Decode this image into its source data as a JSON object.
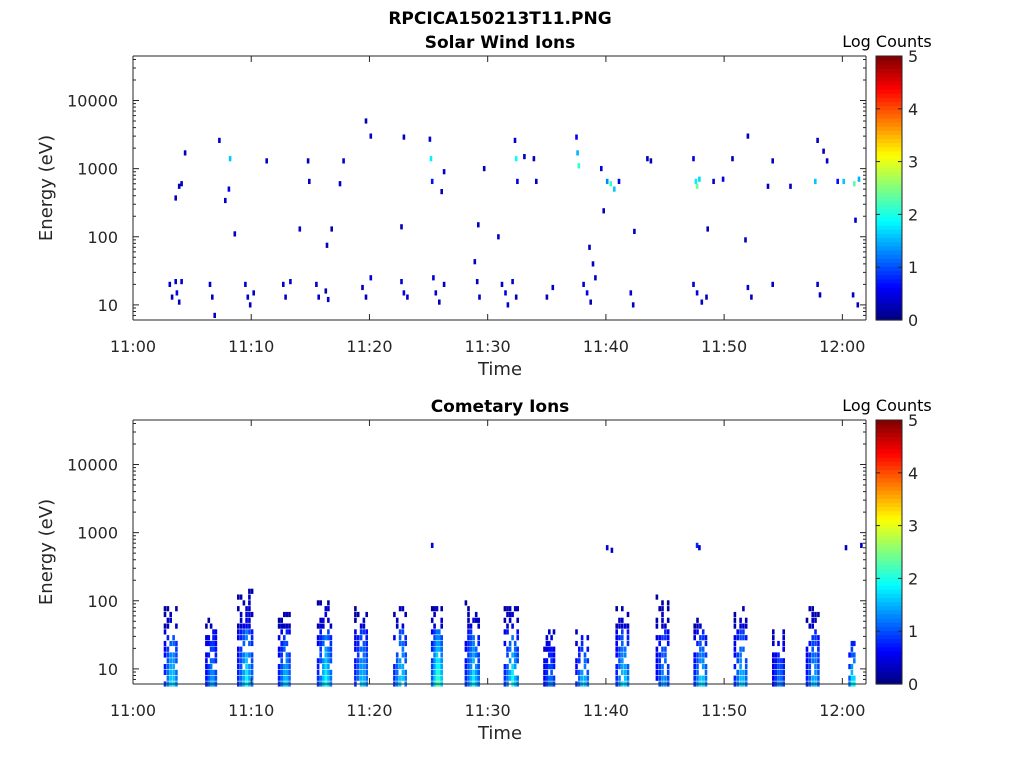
{
  "figure_title": "RPCICA150213T11.PNG",
  "chart_data": [
    {
      "type": "heatmap",
      "title": "Solar Wind Ions",
      "xlabel": "Time",
      "ylabel": "Energy (eV)",
      "xticks": [
        "11:00",
        "11:10",
        "11:20",
        "11:30",
        "11:40",
        "11:50",
        "12:00"
      ],
      "yticks": [
        "10",
        "100",
        "1000",
        "10000"
      ],
      "y_scale": "log",
      "x_range_minutes": [
        0,
        62
      ],
      "y_range_ev": [
        6,
        45000
      ],
      "colorbar": {
        "label": "Log Counts",
        "range": [
          0,
          5
        ],
        "ticks": [
          "0",
          "1",
          "2",
          "3",
          "4",
          "5"
        ]
      },
      "grid": false,
      "cells": [
        [
          3.0,
          20,
          0.4
        ],
        [
          3.2,
          13,
          0.3
        ],
        [
          3.5,
          22,
          0.4
        ],
        [
          3.6,
          15,
          0.5
        ],
        [
          3.8,
          11,
          0.3
        ],
        [
          4.0,
          22,
          0.4
        ],
        [
          6.4,
          20,
          0.4
        ],
        [
          6.6,
          13,
          0.4
        ],
        [
          6.8,
          7,
          0.3
        ],
        [
          9.4,
          20,
          0.4
        ],
        [
          9.6,
          13,
          0.4
        ],
        [
          9.8,
          10,
          0.3
        ],
        [
          10.1,
          15,
          0.4
        ],
        [
          12.6,
          20,
          0.4
        ],
        [
          12.8,
          13,
          0.4
        ],
        [
          13.2,
          22,
          0.4
        ],
        [
          15.4,
          20,
          0.4
        ],
        [
          15.6,
          13,
          0.4
        ],
        [
          16.2,
          16,
          0.3
        ],
        [
          16.4,
          12,
          0.4
        ],
        [
          19.3,
          18,
          0.3
        ],
        [
          19.6,
          13,
          0.3
        ],
        [
          20.0,
          25,
          0.4
        ],
        [
          22.6,
          22,
          0.4
        ],
        [
          22.8,
          15,
          0.5
        ],
        [
          23.1,
          13,
          0.3
        ],
        [
          25.3,
          25,
          0.4
        ],
        [
          25.5,
          15,
          0.4
        ],
        [
          25.8,
          11,
          0.3
        ],
        [
          26.2,
          20,
          0.3
        ],
        [
          29.0,
          22,
          0.3
        ],
        [
          29.2,
          13,
          0.4
        ],
        [
          31.1,
          20,
          0.4
        ],
        [
          31.4,
          15,
          0.5
        ],
        [
          31.6,
          10,
          0.4
        ],
        [
          32.0,
          22,
          0.4
        ],
        [
          32.3,
          13,
          0.3
        ],
        [
          34.9,
          13,
          0.3
        ],
        [
          35.4,
          18,
          0.3
        ],
        [
          38.0,
          20,
          0.4
        ],
        [
          38.3,
          15,
          0.5
        ],
        [
          38.6,
          11,
          0.3
        ],
        [
          39.0,
          25,
          0.3
        ],
        [
          42.0,
          15,
          0.4
        ],
        [
          42.2,
          10,
          0.3
        ],
        [
          47.3,
          20,
          0.4
        ],
        [
          47.6,
          15,
          0.5
        ],
        [
          48.0,
          11,
          0.4
        ],
        [
          48.4,
          13,
          0.3
        ],
        [
          51.9,
          18,
          0.4
        ],
        [
          52.2,
          13,
          0.3
        ],
        [
          54.0,
          20,
          0.3
        ],
        [
          57.8,
          20,
          0.4
        ],
        [
          58.0,
          14,
          0.3
        ],
        [
          60.8,
          14,
          0.3
        ],
        [
          61.2,
          10,
          0.3
        ],
        [
          3.5,
          370,
          0.3
        ],
        [
          3.8,
          550,
          0.3
        ],
        [
          4.0,
          600,
          0.3
        ],
        [
          4.3,
          1700,
          0.3
        ],
        [
          7.2,
          2600,
          0.3
        ],
        [
          7.7,
          340,
          0.3
        ],
        [
          8.0,
          500,
          0.5
        ],
        [
          8.1,
          1400,
          1.6
        ],
        [
          8.5,
          110,
          0.3
        ],
        [
          11.2,
          1300,
          0.4
        ],
        [
          14.0,
          130,
          0.4
        ],
        [
          14.7,
          1300,
          0.3
        ],
        [
          14.8,
          650,
          0.3
        ],
        [
          16.3,
          75,
          0.3
        ],
        [
          16.7,
          130,
          0.3
        ],
        [
          17.4,
          600,
          0.3
        ],
        [
          17.7,
          1300,
          0.4
        ],
        [
          19.6,
          5000,
          0.3
        ],
        [
          20.0,
          3000,
          0.3
        ],
        [
          22.6,
          140,
          0.3
        ],
        [
          22.8,
          2900,
          0.3
        ],
        [
          25.0,
          2700,
          0.4
        ],
        [
          25.1,
          1400,
          1.8
        ],
        [
          25.2,
          650,
          0.7
        ],
        [
          26.0,
          460,
          0.3
        ],
        [
          26.2,
          900,
          0.3
        ],
        [
          28.8,
          43,
          0.3
        ],
        [
          29.1,
          150,
          0.3
        ],
        [
          29.6,
          1000,
          0.3
        ],
        [
          30.8,
          100,
          0.3
        ],
        [
          32.2,
          2600,
          0.4
        ],
        [
          32.3,
          1400,
          1.9
        ],
        [
          32.4,
          650,
          0.5
        ],
        [
          33.0,
          1500,
          0.3
        ],
        [
          33.8,
          1400,
          0.3
        ],
        [
          34.0,
          650,
          0.3
        ],
        [
          37.4,
          2900,
          0.6
        ],
        [
          37.5,
          1700,
          1.5
        ],
        [
          37.6,
          1100,
          2.1
        ],
        [
          38.5,
          70,
          0.3
        ],
        [
          38.8,
          40,
          0.3
        ],
        [
          39.5,
          1000,
          0.5
        ],
        [
          39.7,
          240,
          0.3
        ],
        [
          40.0,
          650,
          1.3
        ],
        [
          40.3,
          600,
          2.1
        ],
        [
          40.6,
          500,
          1.6
        ],
        [
          41.0,
          650,
          0.5
        ],
        [
          42.3,
          120,
          0.3
        ],
        [
          43.4,
          1400,
          0.3
        ],
        [
          43.7,
          1300,
          0.3
        ],
        [
          47.3,
          1400,
          0.5
        ],
        [
          47.5,
          650,
          1.8
        ],
        [
          47.6,
          550,
          2.4
        ],
        [
          47.8,
          700,
          1.7
        ],
        [
          48.5,
          130,
          0.3
        ],
        [
          49.0,
          650,
          0.4
        ],
        [
          49.8,
          700,
          0.5
        ],
        [
          50.6,
          1400,
          0.3
        ],
        [
          51.7,
          90,
          0.3
        ],
        [
          51.9,
          3000,
          0.3
        ],
        [
          53.6,
          550,
          0.3
        ],
        [
          54.0,
          1300,
          0.3
        ],
        [
          55.5,
          550,
          0.3
        ],
        [
          57.6,
          650,
          1.6
        ],
        [
          57.8,
          2600,
          0.3
        ],
        [
          58.3,
          1800,
          0.3
        ],
        [
          58.6,
          1300,
          0.3
        ],
        [
          59.5,
          650,
          0.7
        ],
        [
          60.0,
          650,
          1.6
        ],
        [
          60.9,
          600,
          2.3
        ],
        [
          61.3,
          700,
          1.5
        ],
        [
          61.0,
          175,
          0.3
        ]
      ]
    },
    {
      "type": "heatmap",
      "title": "Cometary Ions",
      "xlabel": "Time",
      "ylabel": "Energy (eV)",
      "xticks": [
        "11:00",
        "11:10",
        "11:20",
        "11:30",
        "11:40",
        "11:50",
        "12:00"
      ],
      "yticks": [
        "10",
        "100",
        "1000",
        "10000"
      ],
      "y_scale": "log",
      "x_range_minutes": [
        0,
        62
      ],
      "y_range_ev": [
        6,
        45000
      ],
      "colorbar": {
        "label": "Log Counts",
        "range": [
          0,
          5
        ],
        "ticks": [
          "0",
          "1",
          "2",
          "3",
          "4",
          "5"
        ]
      },
      "grid": false,
      "bursts": [
        {
          "t": 3.2,
          "w": 1.2,
          "peak": 1.9,
          "ext": 90
        },
        {
          "t": 6.6,
          "w": 1.0,
          "peak": 1.6,
          "ext": 60
        },
        {
          "t": 9.5,
          "w": 1.4,
          "peak": 1.9,
          "ext": 150
        },
        {
          "t": 12.8,
          "w": 1.1,
          "peak": 1.8,
          "ext": 70
        },
        {
          "t": 16.2,
          "w": 1.3,
          "peak": 2.0,
          "ext": 110
        },
        {
          "t": 19.3,
          "w": 1.2,
          "peak": 1.8,
          "ext": 90
        },
        {
          "t": 22.6,
          "w": 1.2,
          "peak": 1.9,
          "ext": 110
        },
        {
          "t": 25.7,
          "w": 1.0,
          "peak": 2.5,
          "ext": 80
        },
        {
          "t": 28.7,
          "w": 1.3,
          "peak": 1.9,
          "ext": 100
        },
        {
          "t": 32.0,
          "w": 1.3,
          "peak": 2.0,
          "ext": 90
        },
        {
          "t": 35.2,
          "w": 1.0,
          "peak": 1.4,
          "ext": 35
        },
        {
          "t": 38.0,
          "w": 1.2,
          "peak": 1.8,
          "ext": 40
        },
        {
          "t": 41.4,
          "w": 1.2,
          "peak": 1.9,
          "ext": 90
        },
        {
          "t": 44.8,
          "w": 1.2,
          "peak": 1.5,
          "ext": 120
        },
        {
          "t": 48.0,
          "w": 1.2,
          "peak": 1.9,
          "ext": 60
        },
        {
          "t": 51.4,
          "w": 1.2,
          "peak": 1.8,
          "ext": 90
        },
        {
          "t": 54.6,
          "w": 1.1,
          "peak": 1.4,
          "ext": 40
        },
        {
          "t": 57.5,
          "w": 1.2,
          "peak": 1.7,
          "ext": 80
        },
        {
          "t": 60.8,
          "w": 0.6,
          "peak": 2.2,
          "ext": 30
        }
      ],
      "cells": [
        [
          25.2,
          650,
          0.5
        ],
        [
          40.0,
          600,
          0.4
        ],
        [
          40.4,
          550,
          0.3
        ],
        [
          47.6,
          650,
          0.8
        ],
        [
          47.8,
          600,
          0.4
        ],
        [
          60.2,
          600,
          0.3
        ],
        [
          61.5,
          650,
          0.3
        ]
      ]
    }
  ]
}
